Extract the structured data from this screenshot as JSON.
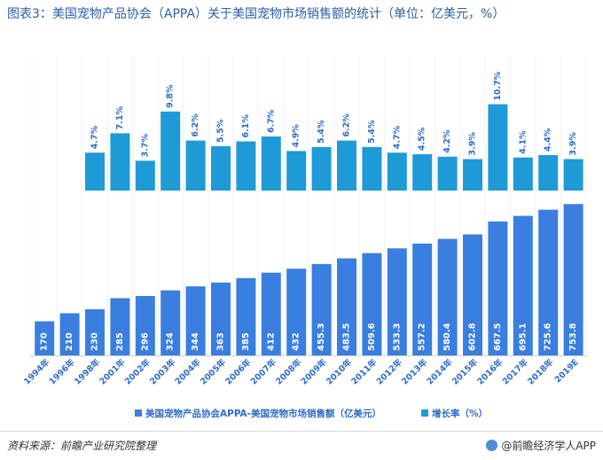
{
  "title": "图表3：美国宠物产品协会（APPA）关于美国宠物市场销售额的统计（单位：亿美元，%）",
  "source": "资料来源：前瞻产业研究院整理",
  "brand": "@前瞻经济学人APP",
  "colors": {
    "sales": "#3a7ee0",
    "growth": "#1e9ad6",
    "axis_label": "#2f6cc8",
    "label_light": "#ffffff"
  },
  "chart_data": {
    "type": "bar",
    "categories": [
      "1994年",
      "1996年",
      "1998年",
      "2001年",
      "2002年",
      "2003年",
      "2004年",
      "2005年",
      "2006年",
      "2007年",
      "2008年",
      "2009年",
      "2010年",
      "2011年",
      "2012年",
      "2013年",
      "2014年",
      "2015年",
      "2016年",
      "2017年",
      "2018年",
      "2019E"
    ],
    "series": [
      {
        "name": "美国宠物产品协会APPA-美国宠物市场销售额（亿美元）",
        "values": [
          170,
          210,
          230,
          285,
          296,
          324,
          344,
          363,
          385,
          412,
          432,
          455.3,
          483.5,
          509.6,
          533.3,
          557.2,
          580.4,
          602.8,
          667.5,
          695.1,
          725.6,
          753.8
        ],
        "labels": [
          "170",
          "210",
          "230",
          "285",
          "296",
          "324",
          "344",
          "363",
          "385",
          "412",
          "432",
          "455.3",
          "483.5",
          "509.6",
          "533.3",
          "557.2",
          "580.4",
          "602.8",
          "667.5",
          "695.1",
          "725.6",
          "753.8"
        ]
      },
      {
        "name": "增长率（%）",
        "values": [
          null,
          null,
          4.7,
          7.1,
          3.7,
          9.8,
          6.2,
          5.5,
          6.1,
          6.7,
          4.9,
          5.4,
          6.2,
          5.4,
          4.7,
          4.5,
          4.2,
          3.9,
          10.7,
          4.1,
          4.4,
          3.9
        ],
        "labels": [
          null,
          null,
          "4.7%",
          "7.1%",
          "3.7%",
          "9.8%",
          "6.2%",
          "5.5%",
          "6.1%",
          "6.7%",
          "4.9%",
          "5.4%",
          "6.2%",
          "5.4%",
          "4.7%",
          "4.5%",
          "4.2%",
          "3.9%",
          "10.7%",
          "4.1%",
          "4.4%",
          "3.9%"
        ]
      }
    ],
    "legend_position": "bottom"
  }
}
